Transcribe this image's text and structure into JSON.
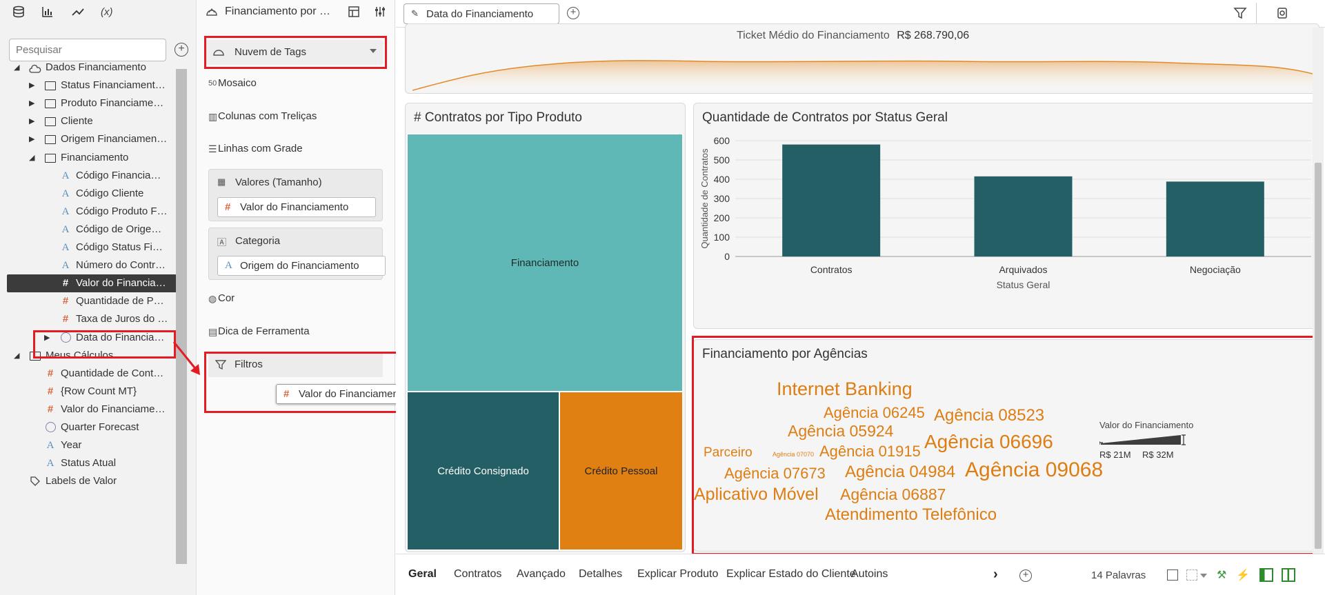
{
  "left_panel": {
    "icons": [
      "database-icon",
      "bar-chart-icon",
      "trend-icon",
      "calc-icon"
    ],
    "calc_label": "(x)",
    "search_placeholder": "Pesquisar",
    "tree": [
      {
        "label": "Dados Financiamento",
        "kind": "dataset",
        "arrow": "open"
      },
      {
        "label": "Status Financiament…",
        "kind": "folder",
        "arrow": "closed"
      },
      {
        "label": "Produto Financiame…",
        "kind": "folder",
        "arrow": "closed"
      },
      {
        "label": "Cliente",
        "kind": "folder",
        "arrow": "closed"
      },
      {
        "label": "Origem Financiamen…",
        "kind": "folder",
        "arrow": "closed"
      },
      {
        "label": "Financiamento",
        "kind": "folder",
        "arrow": "open"
      },
      {
        "label": "Código Financia…",
        "kind": "text"
      },
      {
        "label": "Código Cliente",
        "kind": "text"
      },
      {
        "label": "Código Produto F…",
        "kind": "text"
      },
      {
        "label": "Código de Orige…",
        "kind": "text"
      },
      {
        "label": "Código Status Fi…",
        "kind": "text"
      },
      {
        "label": "Número do Contr…",
        "kind": "text"
      },
      {
        "label": "Valor do Financia…",
        "kind": "measure",
        "selected": true
      },
      {
        "label": "Quantidade de P…",
        "kind": "measure"
      },
      {
        "label": "Taxa de Juros do …",
        "kind": "measure"
      },
      {
        "label": "Data do Financia…",
        "kind": "date",
        "arrow": "closed"
      },
      {
        "label": "Meus Cálculos",
        "kind": "folder",
        "arrow": "open"
      },
      {
        "label": "Quantidade de Cont…",
        "kind": "measure"
      },
      {
        "label": "{Row Count MT}",
        "kind": "measure"
      },
      {
        "label": "Valor do Financiame…",
        "kind": "measure"
      },
      {
        "label": "Quarter Forecast",
        "kind": "date"
      },
      {
        "label": "Year",
        "kind": "text"
      },
      {
        "label": "Status Atual",
        "kind": "text"
      },
      {
        "label": "Labels de Valor",
        "kind": "tag"
      }
    ]
  },
  "grammar": {
    "header_title": "Financiamento por …",
    "viz_type": "Nuvem de Tags",
    "items": {
      "mosaic": "Mosaico",
      "mosaic_icon": "50",
      "trellis_cols": "Colunas com Treliças",
      "grid_rows": "Linhas com Grade",
      "color": "Cor",
      "tooltip": "Dica de Ferramenta",
      "filters": "Filtros"
    },
    "values_label": "Valores (Tamanho)",
    "values_chip": "Valor do Financiamento",
    "category_label": "Categoria",
    "category_chip": "Origem do Financiamento",
    "drag_chip": "Valor do Financiamento"
  },
  "toolbar": {
    "filter_pill": "Data do Financiamento"
  },
  "ticket": {
    "title": "Ticket Médio do Financiamento",
    "value": "R$ 268.790,06"
  },
  "treemap": {
    "title": "# Contratos por Tipo Produto",
    "cells": [
      {
        "label": "Financiamento",
        "color": "#5fb8b5"
      },
      {
        "label": "Crédito Consignado",
        "color": "#245f66"
      },
      {
        "label": "Crédito Pessoal",
        "color": "#e07f12"
      }
    ]
  },
  "chart_data": {
    "type": "bar",
    "title": "Quantidade de Contratos por Status Geral",
    "categories": [
      "Contratos",
      "Arquivados",
      "Negociação"
    ],
    "values": [
      580,
      415,
      388
    ],
    "xlabel": "Status Geral",
    "ylabel": "Quantidade de Contratos",
    "ylim": [
      0,
      600
    ],
    "yticks": [
      0,
      100,
      200,
      300,
      400,
      500,
      600
    ],
    "grid": true,
    "color": "#245f66"
  },
  "tagcloud": {
    "title": "Financiamento por Agências",
    "words": [
      {
        "text": "Internet Banking",
        "size": 27
      },
      {
        "text": "Agência 06245",
        "size": 22
      },
      {
        "text": "Agência 08523",
        "size": 24
      },
      {
        "text": "Agência 05924",
        "size": 23
      },
      {
        "text": "Agência 06696",
        "size": 28
      },
      {
        "text": "Parceiro",
        "size": 19
      },
      {
        "text": "Agência 07070",
        "size": 9
      },
      {
        "text": "Agência 01915",
        "size": 22
      },
      {
        "text": "Agência 07673",
        "size": 22
      },
      {
        "text": "Agência 04984",
        "size": 24
      },
      {
        "text": "Agência 09068",
        "size": 30
      },
      {
        "text": "Aplicativo Móvel",
        "size": 25
      },
      {
        "text": "Agência 06887",
        "size": 23
      },
      {
        "text": "Atendimento Telefônico",
        "size": 24
      }
    ],
    "legend": {
      "title": "Valor do Financiamento",
      "min": "R$ 21M",
      "max": "R$ 32M"
    },
    "color": "#de7d12"
  },
  "tabs": [
    "Geral",
    "Contratos",
    "Avançado",
    "Detalhes",
    "Explicar Produto",
    "Explicar Estado do Cliente",
    "Autoins"
  ],
  "status": {
    "word_count": "14 Palavras"
  }
}
